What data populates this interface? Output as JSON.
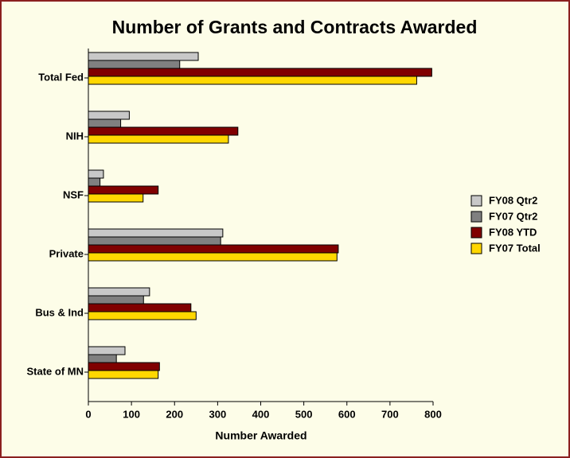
{
  "chart_data": {
    "type": "hbar",
    "title": "Number of Grants and Contracts Awarded",
    "xlabel": "Number Awarded",
    "categories": [
      "Total Fed",
      "NIH",
      "NSF",
      "Private",
      "Bus & Ind",
      "State of MN"
    ],
    "series": [
      {
        "name": "FY08 Qtr2",
        "color": "#c8c8c8",
        "values": [
          255,
          95,
          35,
          312,
          142,
          85
        ]
      },
      {
        "name": "FY07 Qtr2",
        "color": "#808080",
        "values": [
          212,
          75,
          27,
          307,
          128,
          65
        ]
      },
      {
        "name": "FY08 YTD",
        "color": "#800000",
        "values": [
          797,
          347,
          162,
          580,
          238,
          165
        ]
      },
      {
        "name": "FY07 Total",
        "color": "#ffd700",
        "values": [
          762,
          325,
          127,
          577,
          250,
          162
        ]
      }
    ],
    "xlim": [
      0,
      800
    ],
    "xticks": [
      0,
      100,
      200,
      300,
      400,
      500,
      600,
      700,
      800
    ],
    "legend": "right"
  }
}
